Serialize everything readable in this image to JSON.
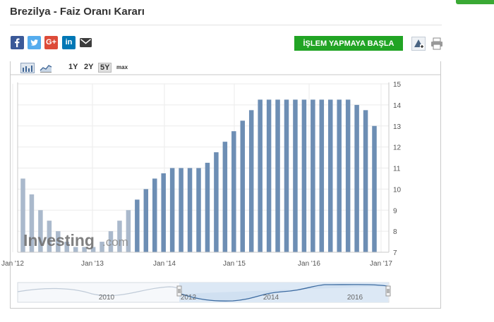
{
  "page": {
    "title": "Brezilya - Faiz Oranı Kararı",
    "trade_button": "İŞLEM YAPMAYA BAŞLA"
  },
  "share_icons": [
    "facebook-icon",
    "twitter-icon",
    "google-plus-icon",
    "linkedin-icon",
    "email-icon"
  ],
  "toolbar": {
    "range_buttons": [
      "1Y",
      "2Y",
      "5Y",
      "max"
    ],
    "active_range": "5Y"
  },
  "colors": {
    "bar": "#6d8eb4",
    "bar_faded": "#aab9cc",
    "trade_button": "#21a424",
    "facebook": "#3b5998",
    "twitter": "#55acee",
    "google_plus": "#dd4b39",
    "linkedin": "#0077b5"
  },
  "watermark": {
    "brand": "Investing",
    "suffix": ".com"
  },
  "navigator": {
    "labels": [
      "2010",
      "2012",
      "2014",
      "2016"
    ]
  },
  "chart_data": {
    "type": "bar",
    "x_tick_labels": [
      "Jan '12",
      "Jan '13",
      "Jan '14",
      "Jan '15",
      "Jan '16",
      "Jan '17"
    ],
    "y_tick_labels": [
      "7",
      "8",
      "9",
      "10",
      "11",
      "12",
      "13",
      "14",
      "15"
    ],
    "ylim": [
      7,
      15
    ],
    "y_axis_position": "right",
    "grid": true,
    "values": [
      10.5,
      9.75,
      9.0,
      8.5,
      8.0,
      7.5,
      7.25,
      7.25,
      7.25,
      7.5,
      8.0,
      8.5,
      9.0,
      9.5,
      10.0,
      10.5,
      10.75,
      11.0,
      11.0,
      11.0,
      11.0,
      11.25,
      11.75,
      12.25,
      12.75,
      13.25,
      13.75,
      14.25,
      14.25,
      14.25,
      14.25,
      14.25,
      14.25,
      14.25,
      14.25,
      14.25,
      14.25,
      14.25,
      14.0,
      13.75,
      13.0
    ]
  }
}
